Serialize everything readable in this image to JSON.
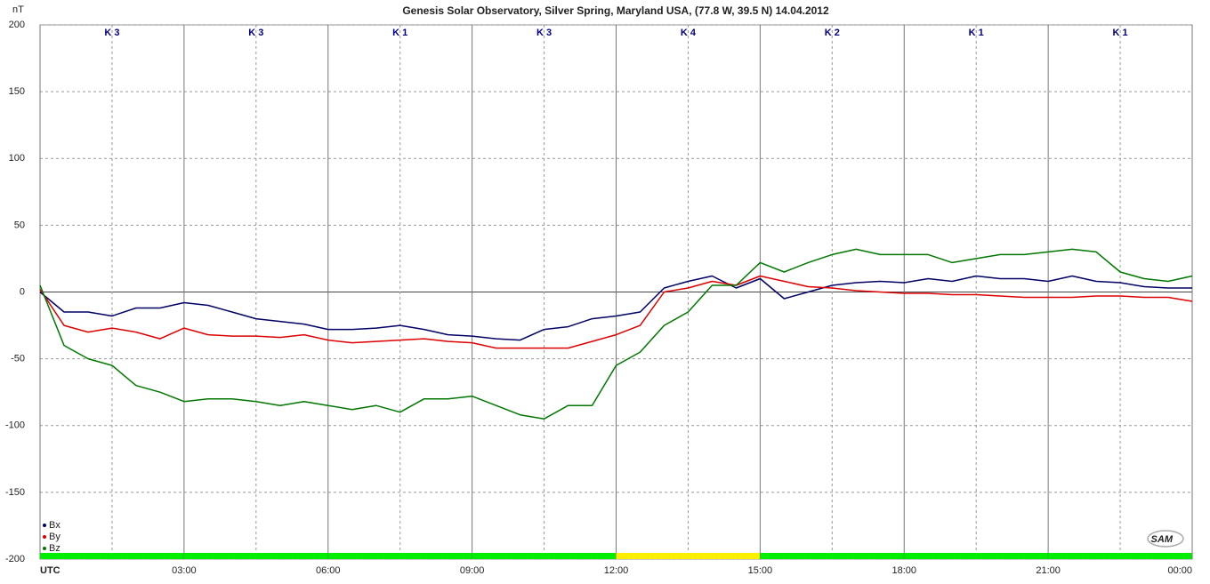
{
  "chart_data": {
    "type": "line",
    "title": "Genesis Solar Observatory, Silver Spring, Maryland USA, (77.8 W, 39.5 N)  14.04.2012",
    "y_label": "nT",
    "logo": "SAM",
    "x": [
      0,
      0.5,
      1,
      1.5,
      2,
      2.5,
      3,
      3.5,
      4,
      4.5,
      5,
      5.5,
      6,
      6.5,
      7,
      7.5,
      8,
      8.5,
      9,
      9.5,
      10,
      10.5,
      11,
      11.5,
      12,
      12.5,
      13,
      13.5,
      14,
      14.5,
      15,
      15.5,
      16,
      16.5,
      17,
      17.5,
      18,
      18.5,
      19,
      19.5,
      20,
      20.5,
      21,
      21.5,
      22,
      22.5,
      23,
      23.5,
      24
    ],
    "xlim": [
      0,
      24
    ],
    "xticks": [
      {
        "value": 0,
        "label": "UTC"
      },
      {
        "value": 3,
        "label": "03:00"
      },
      {
        "value": 6,
        "label": "06:00"
      },
      {
        "value": 9,
        "label": "09:00"
      },
      {
        "value": 12,
        "label": "12:00"
      },
      {
        "value": 15,
        "label": "15:00"
      },
      {
        "value": 18,
        "label": "18:00"
      },
      {
        "value": 21,
        "label": "21:00"
      },
      {
        "value": 24,
        "label": "00:00"
      }
    ],
    "ylim": [
      -200,
      200
    ],
    "yticks": [
      -200,
      -150,
      -100,
      -50,
      0,
      50,
      100,
      150,
      200
    ],
    "grid": true,
    "legend": "lower left",
    "series": [
      {
        "name": "Bx",
        "color": "#000066",
        "values": [
          0,
          -15,
          -15,
          -18,
          -12,
          -12,
          -8,
          -10,
          -15,
          -20,
          -22,
          -24,
          -28,
          -28,
          -27,
          -25,
          -28,
          -32,
          -33,
          -35,
          -36,
          -28,
          -26,
          -20,
          -18,
          -15,
          3,
          8,
          12,
          3,
          10,
          -5,
          0,
          5,
          7,
          8,
          7,
          10,
          8,
          12,
          10,
          10,
          8,
          12,
          8,
          7,
          4,
          3,
          3
        ]
      },
      {
        "name": "By",
        "color": "#dd0000",
        "values": [
          2,
          -25,
          -30,
          -27,
          -30,
          -35,
          -27,
          -32,
          -33,
          -33,
          -34,
          -32,
          -36,
          -38,
          -37,
          -36,
          -35,
          -37,
          -38,
          -42,
          -42,
          -42,
          -42,
          -37,
          -32,
          -25,
          0,
          3,
          8,
          5,
          12,
          8,
          4,
          3,
          1,
          0,
          -1,
          -1,
          -2,
          -2,
          -3,
          -4,
          -4,
          -4,
          -3,
          -3,
          -4,
          -4,
          -7
        ]
      },
      {
        "name": "Bz",
        "color": "#007700",
        "values": [
          5,
          -40,
          -50,
          -55,
          -70,
          -75,
          -82,
          -80,
          -80,
          -82,
          -85,
          -82,
          -85,
          -88,
          -85,
          -90,
          -80,
          -80,
          -78,
          -85,
          -92,
          -95,
          -85,
          -85,
          -55,
          -45,
          -25,
          -15,
          5,
          5,
          22,
          15,
          22,
          28,
          32,
          28,
          28,
          28,
          22,
          25,
          28,
          28,
          30,
          32,
          30,
          15,
          10,
          8,
          12
        ]
      }
    ],
    "k_index": {
      "labels": [
        "K 3",
        "K 3",
        "K 1",
        "K 3",
        "K 4",
        "K 2",
        "K 1",
        "K 1"
      ],
      "colors": [
        "#00ee00",
        "#00ee00",
        "#00ee00",
        "#00ee00",
        "#ffee00",
        "#00ee00",
        "#00ee00",
        "#00ee00"
      ]
    }
  }
}
